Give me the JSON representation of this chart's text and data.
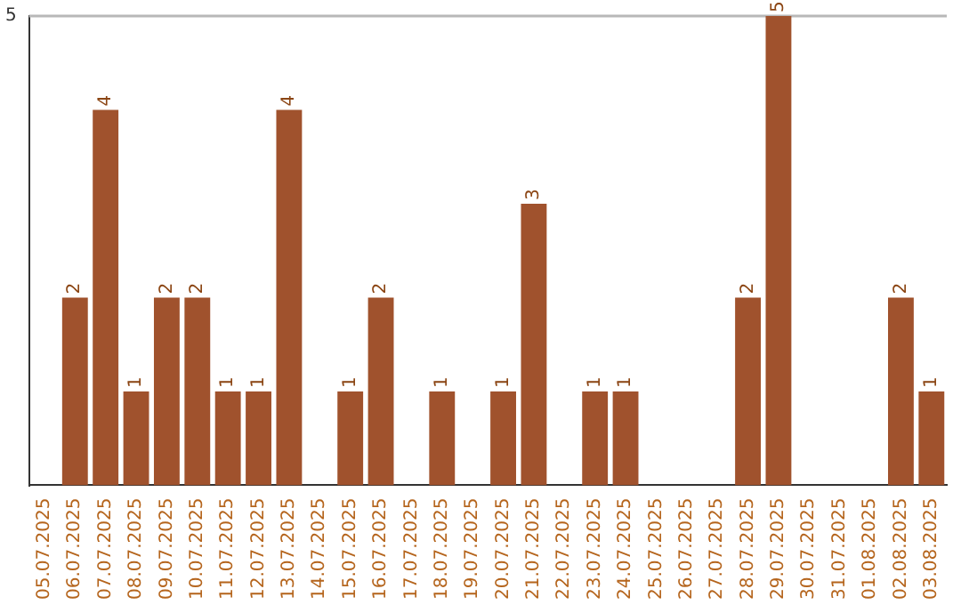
{
  "chart_data": {
    "type": "bar",
    "categories": [
      "05.07.2025",
      "06.07.2025",
      "07.07.2025",
      "08.07.2025",
      "09.07.2025",
      "10.07.2025",
      "11.07.2025",
      "12.07.2025",
      "13.07.2025",
      "14.07.2025",
      "15.07.2025",
      "16.07.2025",
      "17.07.2025",
      "18.07.2025",
      "19.07.2025",
      "20.07.2025",
      "21.07.2025",
      "22.07.2025",
      "23.07.2025",
      "24.07.2025",
      "25.07.2025",
      "26.07.2025",
      "27.07.2025",
      "28.07.2025",
      "29.07.2025",
      "30.07.2025",
      "31.07.2025",
      "01.08.2025",
      "02.08.2025",
      "03.08.2025"
    ],
    "values": [
      0,
      2,
      4,
      1,
      2,
      2,
      1,
      1,
      4,
      0,
      1,
      2,
      0,
      1,
      0,
      1,
      3,
      0,
      1,
      1,
      0,
      0,
      0,
      2,
      5,
      0,
      0,
      0,
      2,
      1
    ],
    "value_labels": [
      null,
      "2",
      "4",
      "1",
      "2",
      "2",
      "1",
      "1",
      "4",
      null,
      "1",
      "2",
      null,
      "1",
      null,
      "1",
      "3",
      null,
      "1",
      "1",
      null,
      null,
      null,
      "2",
      "5",
      null,
      null,
      null,
      "2",
      "1"
    ],
    "color": "#a0522d",
    "ylim": [
      0,
      5
    ],
    "yticks": [
      5
    ],
    "legend": false
  }
}
